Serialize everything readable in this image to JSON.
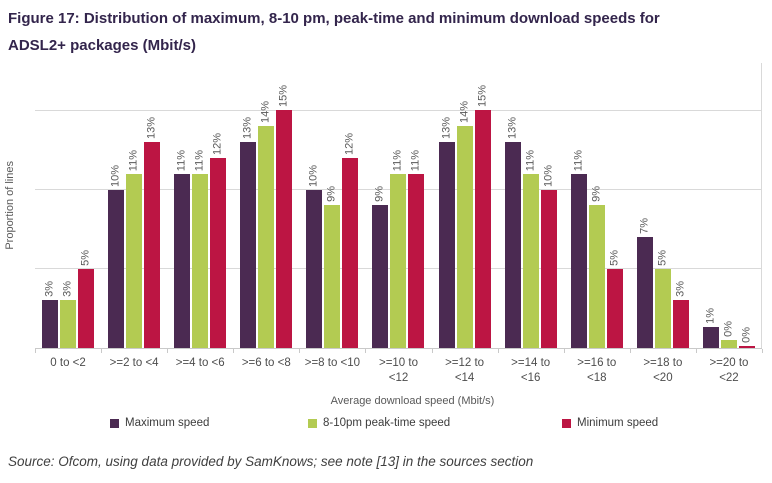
{
  "figure": {
    "title": "Figure 17: Distribution of maximum, 8-10 pm, peak-time and minimum download speeds for ADSL2+ packages (Mbit/s)",
    "title_lines": [
      "Figure 17: Distribution of maximum, 8-10 pm, peak-time and minimum download speeds for",
      "ADSL2+ packages (Mbit/s)"
    ],
    "source": "Source: Ofcom, using data provided by SamKnows; see note [13] in the sources section"
  },
  "colors": {
    "title_text": "#33254C",
    "axis_text": "#595959",
    "gridline": "#D9D9D9",
    "maximum_speed": "#4B2A52",
    "peak_time_speed": "#B3CB52",
    "minimum_speed": "#BC1543"
  },
  "chart_data": {
    "type": "bar",
    "title": "",
    "xlabel": "Average download speed (Mbit/s)",
    "ylabel": "Proportion of lines",
    "ylim": [
      0,
      18
    ],
    "gridlines_pct": [
      5,
      10,
      15
    ],
    "grid": "on",
    "legend_position": "bottom",
    "categories": [
      "0 to <2",
      ">=2 to <4",
      ">=4 to <6",
      ">=6 to <8",
      ">=8 to <10",
      ">=10 to <12",
      ">=12 to <14",
      ">=14 to <16",
      ">=16 to <18",
      ">=18 to <20",
      ">=20 to <22"
    ],
    "tick_label_lines": [
      [
        "0 to <2"
      ],
      [
        ">=2 to <4"
      ],
      [
        ">=4 to <6"
      ],
      [
        ">=6 to <8"
      ],
      [
        ">=8 to <10"
      ],
      [
        ">=10 to",
        "<12"
      ],
      [
        ">=12 to",
        "<14"
      ],
      [
        ">=14 to",
        "<16"
      ],
      [
        ">=16 to",
        "<18"
      ],
      [
        ">=18 to",
        "<20"
      ],
      [
        ">=20 to",
        "<22"
      ]
    ],
    "series": [
      {
        "name": "Maximum speed",
        "color": "#4B2A52",
        "values": [
          3,
          10,
          11,
          13,
          10,
          9,
          13,
          13,
          11,
          7,
          1.3
        ],
        "labels": [
          "3%",
          "10%",
          "11%",
          "13%",
          "10%",
          "9%",
          "13%",
          "13%",
          "11%",
          "7%",
          "1%"
        ]
      },
      {
        "name": "8-10pm peak-time speed",
        "color": "#B3CB52",
        "values": [
          3,
          11,
          11,
          14,
          9,
          11,
          14,
          11,
          9,
          5,
          0.5
        ],
        "labels": [
          "3%",
          "11%",
          "11%",
          "14%",
          "9%",
          "11%",
          "14%",
          "11%",
          "9%",
          "5%",
          "0%"
        ]
      },
      {
        "name": "Minimum speed",
        "color": "#BC1543",
        "values": [
          5,
          13,
          12,
          15,
          12,
          11,
          15,
          10,
          5,
          3,
          0.15
        ],
        "labels": [
          "5%",
          "13%",
          "12%",
          "15%",
          "12%",
          "11%",
          "15%",
          "10%",
          "5%",
          "3%",
          "0%"
        ]
      }
    ]
  }
}
